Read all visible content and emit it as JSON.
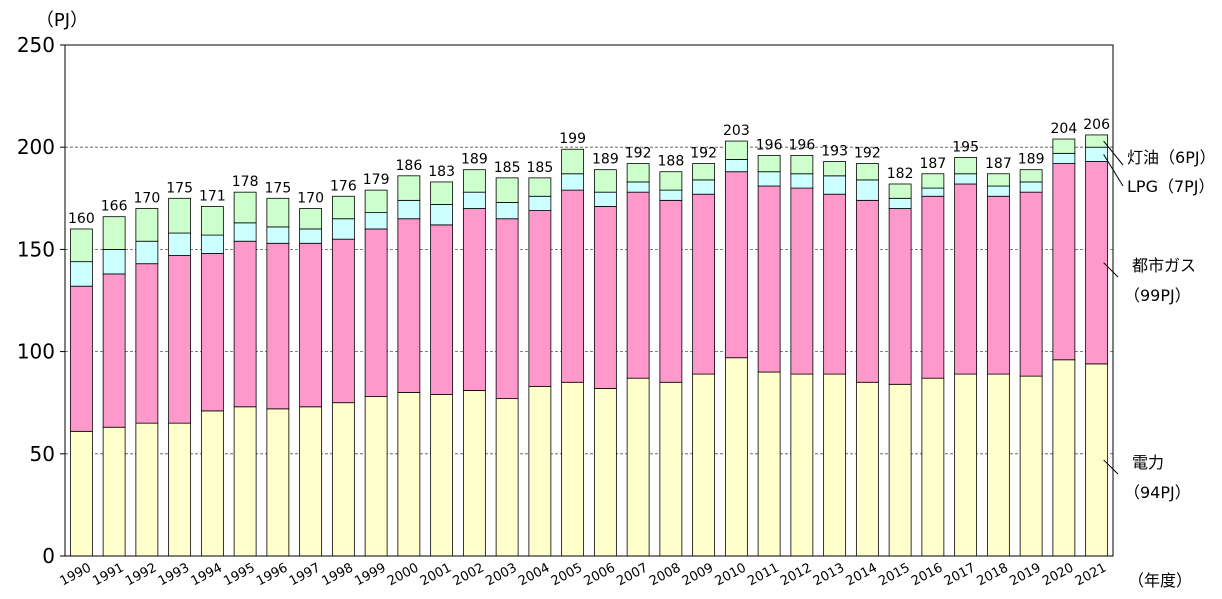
{
  "chart_data": {
    "type": "stacked_bar",
    "y_axis_label": "（PJ）",
    "x_axis_label": "（年度）",
    "categories": [
      "1990",
      "1991",
      "1992",
      "1993",
      "1994",
      "1995",
      "1996",
      "1997",
      "1998",
      "1999",
      "2000",
      "2001",
      "2002",
      "2003",
      "2004",
      "2005",
      "2006",
      "2007",
      "2008",
      "2009",
      "2010",
      "2011",
      "2012",
      "2013",
      "2014",
      "2015",
      "2016",
      "2017",
      "2018",
      "2019",
      "2020",
      "2021"
    ],
    "series": [
      {
        "name": "電力",
        "note": "（94PJ）",
        "color": "#ffffcc",
        "values": [
          61,
          63,
          65,
          65,
          71,
          73,
          72,
          73,
          75,
          78,
          80,
          79,
          81,
          77,
          83,
          85,
          82,
          87,
          85,
          89,
          97,
          90,
          89,
          89,
          85,
          84,
          87,
          89,
          89,
          88,
          96,
          94
        ]
      },
      {
        "name": "都市ガス",
        "note": "（99PJ）",
        "color": "#ff99cc",
        "values": [
          71,
          75,
          78,
          82,
          77,
          81,
          81,
          80,
          80,
          82,
          85,
          83,
          89,
          88,
          86,
          94,
          89,
          91,
          89,
          88,
          91,
          91,
          91,
          88,
          89,
          86,
          89,
          93,
          87,
          90,
          96,
          99
        ]
      },
      {
        "name": "LPG",
        "note": "（7PJ）",
        "color": "#ccffff",
        "values": [
          12,
          12,
          11,
          11,
          9,
          9,
          8,
          7,
          10,
          8,
          9,
          10,
          8,
          8,
          7,
          8,
          7,
          5,
          5,
          7,
          6,
          7,
          7,
          9,
          10,
          5,
          4,
          5,
          5,
          5,
          5,
          7
        ]
      },
      {
        "name": "灯油",
        "note": "（6PJ）",
        "color": "#ccffcc",
        "values": [
          16,
          16,
          16,
          17,
          14,
          15,
          14,
          10,
          11,
          11,
          12,
          11,
          11,
          12,
          9,
          12,
          11,
          9,
          9,
          8,
          9,
          8,
          9,
          7,
          8,
          7,
          7,
          8,
          6,
          6,
          7,
          6
        ]
      }
    ],
    "totals": [
      160,
      166,
      170,
      175,
      171,
      178,
      175,
      170,
      176,
      179,
      186,
      183,
      189,
      185,
      185,
      199,
      189,
      192,
      188,
      192,
      203,
      196,
      196,
      193,
      192,
      182,
      187,
      195,
      187,
      189,
      204,
      206
    ],
    "ylim": [
      0,
      250
    ],
    "yticks": [
      0,
      50,
      100,
      150,
      200,
      250
    ],
    "grid": true
  }
}
